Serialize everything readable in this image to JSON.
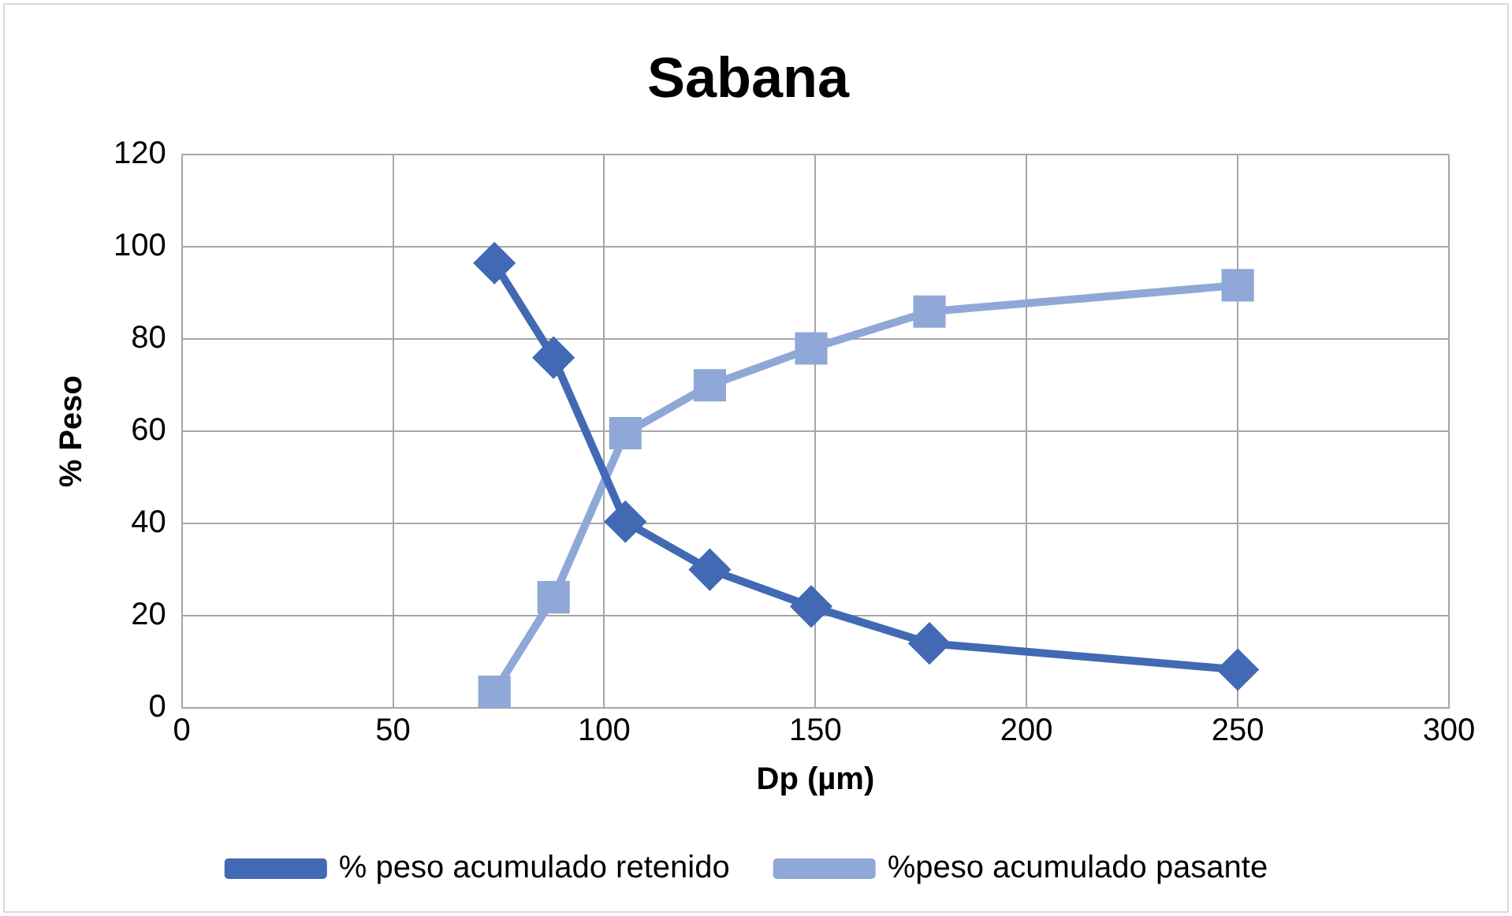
{
  "chart_data": {
    "type": "line",
    "title": "Sabana",
    "xlabel": "Dp (µm)",
    "ylabel": "% Peso",
    "x": [
      74,
      88,
      105,
      125,
      149,
      177,
      250
    ],
    "series": [
      {
        "name": "% peso acumulado retenido",
        "color": "#4169b4",
        "marker": "diamond",
        "values": [
          96.5,
          76,
          40.4,
          30,
          22,
          14,
          8.3
        ]
      },
      {
        "name": "%peso acumulado pasante",
        "color": "#8fa8d8",
        "marker": "square",
        "values": [
          3.5,
          24,
          59.6,
          70,
          78,
          86,
          91.7
        ]
      }
    ],
    "xlim": [
      0,
      300
    ],
    "xticks": [
      0,
      50,
      100,
      150,
      200,
      250,
      300
    ],
    "ylim": [
      0,
      120
    ],
    "yticks": [
      0,
      20,
      40,
      60,
      80,
      100,
      120
    ],
    "grid": true,
    "legend": "bottom",
    "line_style": "solid"
  }
}
